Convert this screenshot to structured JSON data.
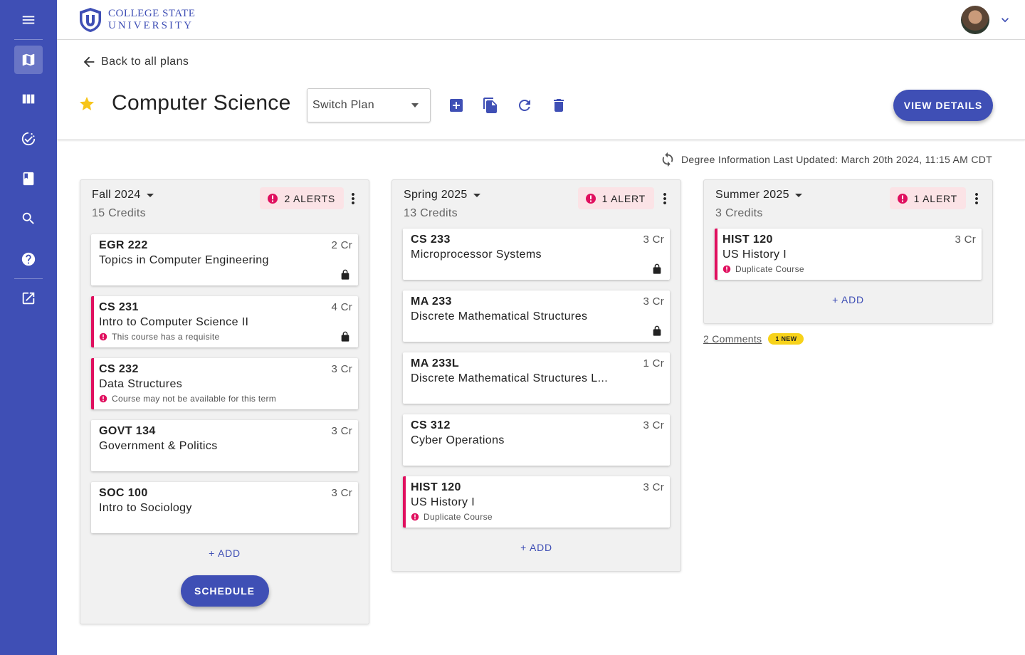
{
  "app": {
    "logo_line1": "COLLEGE STATE",
    "logo_line2": "UNIVERSITY",
    "accent_color": "#3f4fb5",
    "alert_color": "#e0105f"
  },
  "sidebar": {
    "items": [
      {
        "icon": "menu-icon"
      },
      {
        "icon": "map-icon",
        "active": true
      },
      {
        "icon": "columns-icon"
      },
      {
        "icon": "check-circle-icon"
      },
      {
        "icon": "book-icon"
      },
      {
        "icon": "search-icon"
      },
      {
        "icon": "help-icon"
      },
      {
        "icon": "open-external-icon"
      }
    ]
  },
  "header": {
    "back_label": "Back to all plans",
    "plan_title": "Computer Science",
    "switch_plan_label": "Switch Plan",
    "view_details_label": "VIEW DETAILS"
  },
  "updated_text": "Degree Information Last Updated: March 20th 2024, 11:15 AM CDT",
  "terms": [
    {
      "name": "Fall 2024",
      "credits": "15 Credits",
      "alert_label": "2 ALERTS",
      "add_label": "+ ADD",
      "schedule_label": "SCHEDULE",
      "courses": [
        {
          "code": "EGR 222",
          "name": "Topics in Computer Engineering",
          "credits": "2 Cr",
          "locked": true,
          "warning": ""
        },
        {
          "code": "CS 231",
          "name": "Intro to Computer Science II",
          "credits": "4 Cr",
          "locked": true,
          "warning": "This course has a requisite"
        },
        {
          "code": "CS 232",
          "name": "Data Structures",
          "credits": "3 Cr",
          "locked": false,
          "warning": "Course may not be available for this term"
        },
        {
          "code": "GOVT 134",
          "name": "Government & Politics",
          "credits": "3 Cr",
          "locked": false,
          "warning": ""
        },
        {
          "code": "SOC 100",
          "name": "Intro to Sociology",
          "credits": "3 Cr",
          "locked": false,
          "warning": ""
        }
      ]
    },
    {
      "name": "Spring 2025",
      "credits": "13 Credits",
      "alert_label": "1 ALERT",
      "add_label": "+ ADD",
      "courses": [
        {
          "code": "CS 233",
          "name": "Microprocessor Systems",
          "credits": "3 Cr",
          "locked": true,
          "warning": ""
        },
        {
          "code": "MA 233",
          "name": "Discrete Mathematical Structures",
          "credits": "3 Cr",
          "locked": true,
          "warning": ""
        },
        {
          "code": "MA 233L",
          "name": "Discrete Mathematical Structures L...",
          "credits": "1 Cr",
          "locked": false,
          "warning": ""
        },
        {
          "code": "CS 312",
          "name": "Cyber Operations",
          "credits": "3 Cr",
          "locked": false,
          "warning": ""
        },
        {
          "code": "HIST 120",
          "name": "US History I",
          "credits": "3 Cr",
          "locked": false,
          "warning": "Duplicate Course"
        }
      ]
    },
    {
      "name": "Summer 2025",
      "credits": "3 Credits",
      "alert_label": "1 ALERT",
      "add_label": "+ ADD",
      "courses": [
        {
          "code": "HIST 120",
          "name": "US History I",
          "credits": "3 Cr",
          "locked": false,
          "warning": "Duplicate Course"
        }
      ]
    }
  ],
  "comments": {
    "label": "2 Comments",
    "badge": "1 NEW"
  }
}
